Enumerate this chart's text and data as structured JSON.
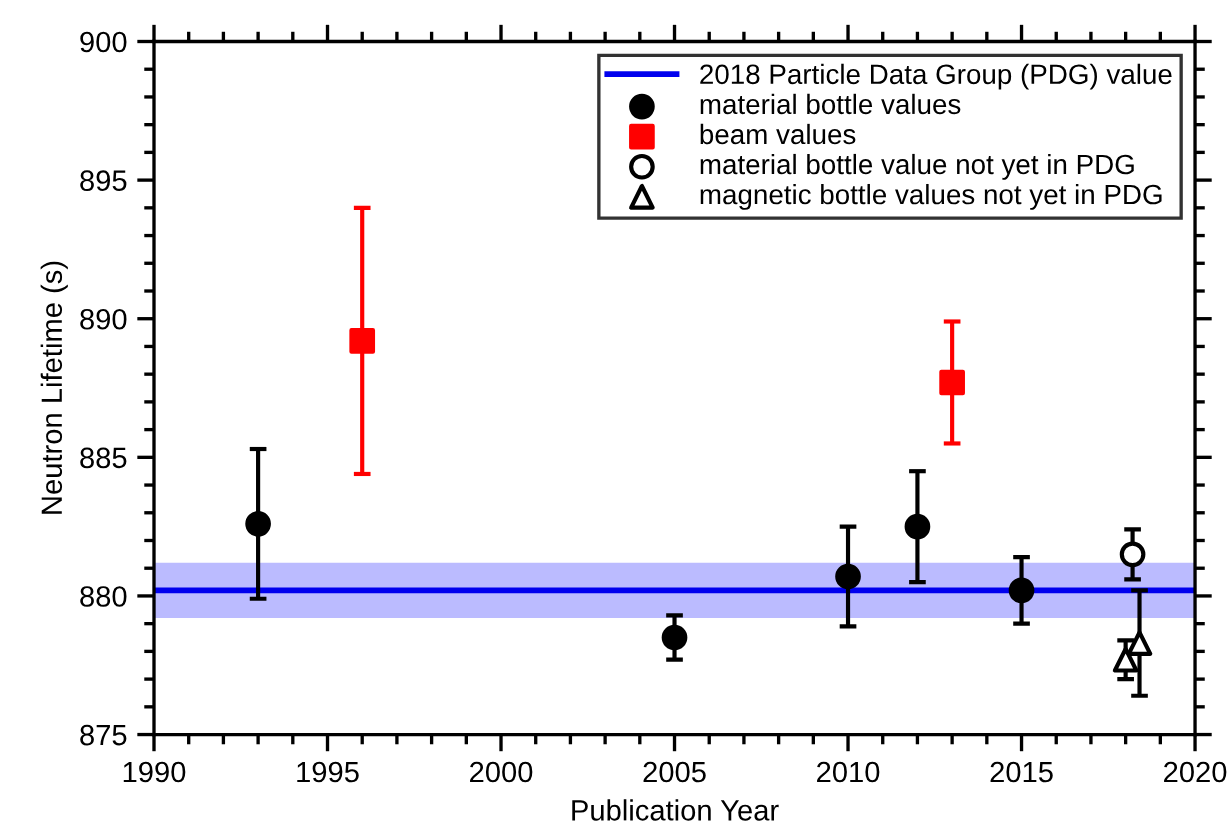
{
  "chart_data": {
    "type": "scatter",
    "xlabel": "Publication Year",
    "ylabel": "Neutron Lifetime (s)",
    "xlim": [
      1990,
      2020
    ],
    "xticks": [
      1990,
      1995,
      2000,
      2005,
      2010,
      2015,
      2020
    ],
    "ylim": [
      875,
      900
    ],
    "yticks": [
      875,
      880,
      885,
      890,
      895,
      900
    ],
    "grid": false,
    "legend": "top right",
    "ref_lines": [
      {
        "axis": "y",
        "value": 880.2,
        "label": "2018 Particle Data Group (PDG) value",
        "color": "#0000ee",
        "line_style": "solid"
      }
    ],
    "bands": [
      {
        "axis": "y",
        "from": 879.2,
        "to": 881.2,
        "color": "#bbbbff"
      }
    ],
    "series": [
      {
        "name": "material bottle values",
        "color": "#000000",
        "marker": "circle",
        "x": [
          1993,
          2005,
          2010,
          2012,
          2015
        ],
        "values": [
          882.6,
          878.5,
          880.7,
          882.5,
          880.2
        ],
        "errors": [
          2.7,
          0.8,
          1.8,
          2.0,
          1.2
        ]
      },
      {
        "name": "beam values",
        "color": "#ff0000",
        "marker": "square",
        "x": [
          1996,
          2013
        ],
        "values": [
          889.2,
          887.7
        ],
        "errors": [
          4.8,
          2.2
        ]
      },
      {
        "name": "material bottle value not yet in PDG",
        "color": "#ffffff",
        "marker": "circle",
        "x": [
          2018.2
        ],
        "values": [
          881.5
        ],
        "errors": [
          0.9
        ]
      },
      {
        "name": "magnetic bottle values not yet in PDG",
        "color": "#ffffff",
        "marker": "triangle",
        "x": [
          2018.0,
          2018.4
        ],
        "values": [
          877.7,
          878.3
        ],
        "errors": [
          0.7,
          1.9
        ]
      }
    ]
  }
}
